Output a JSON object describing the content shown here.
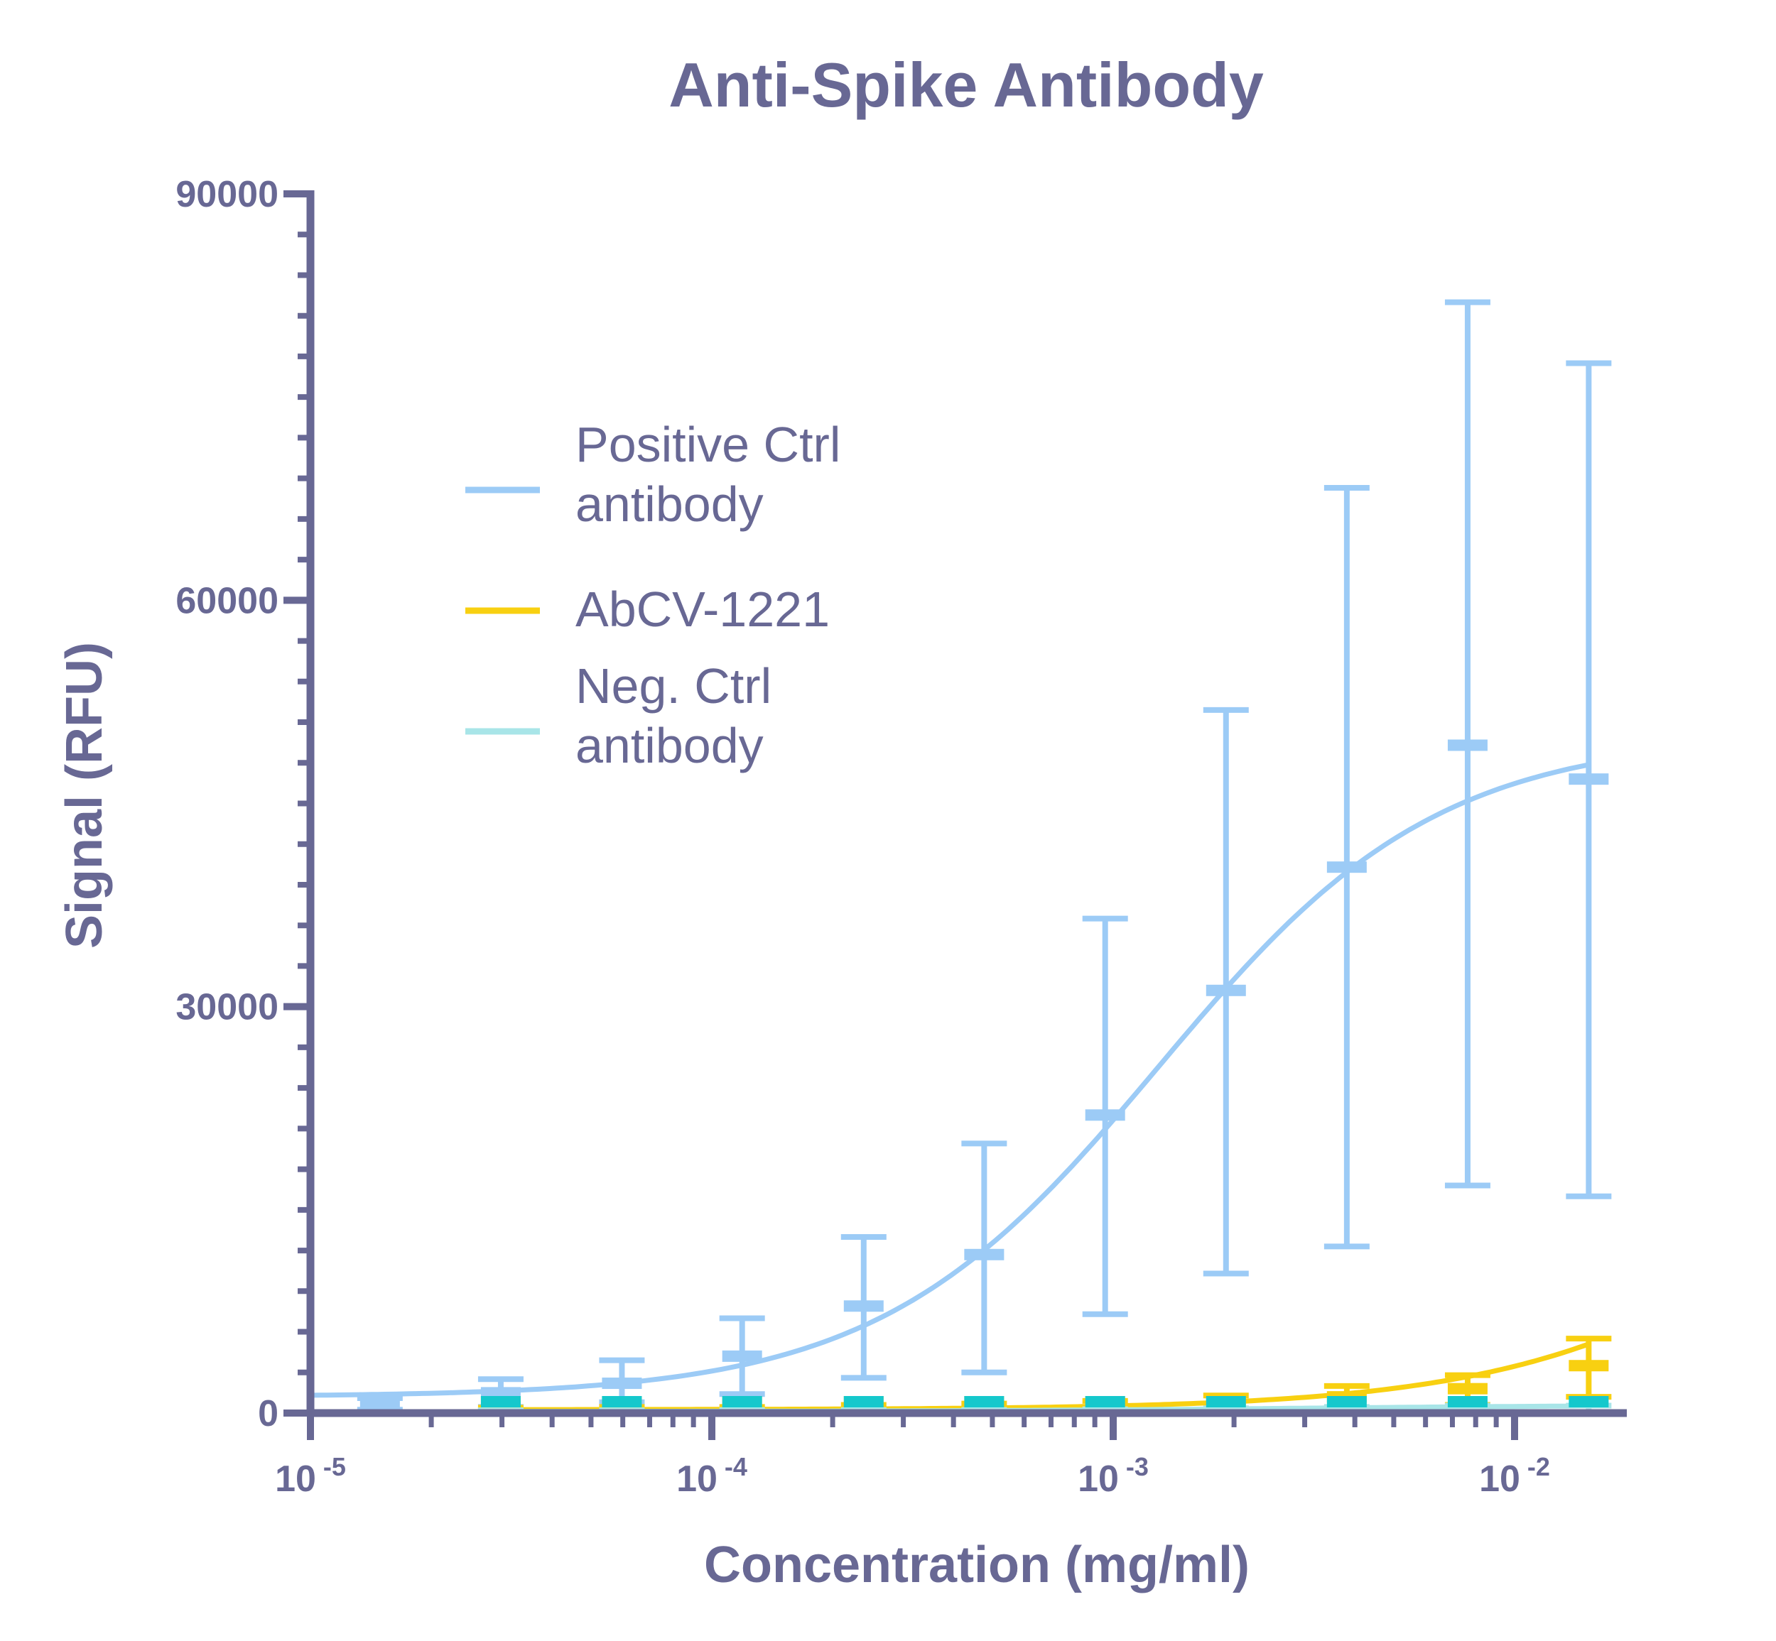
{
  "chart_data": {
    "type": "scatter",
    "title": "Anti-Spike Antibody",
    "xlabel": "Concentration (mg/ml)",
    "ylabel": "Signal (RFU)",
    "x_scale": "log",
    "xlim": [
      1e-05,
      0.02
    ],
    "ylim": [
      0,
      90000
    ],
    "x_ticks": [
      {
        "value": 1e-05,
        "base": "10",
        "exp": "-5"
      },
      {
        "value": 0.0001,
        "base": "10",
        "exp": "-4"
      },
      {
        "value": 0.001,
        "base": "10",
        "exp": "-3"
      },
      {
        "value": 0.01,
        "base": "10",
        "exp": "-2"
      }
    ],
    "y_ticks": [
      {
        "value": 0,
        "label": "0"
      },
      {
        "value": 30000,
        "label": "30000"
      },
      {
        "value": 60000,
        "label": "60000"
      },
      {
        "value": 90000,
        "label": "90000"
      }
    ],
    "y_minor_step": 3000,
    "grid": false,
    "legend_position": "upper-left",
    "colors": {
      "axis": "#686894",
      "text": "#686894"
    },
    "series": [
      {
        "name": "Positive Ctrl\nantibody",
        "color": "#9ccbf6",
        "points": [
          {
            "x": 1.49e-05,
            "y": 700,
            "low": 250,
            "high": 1100
          },
          {
            "x": 2.98e-05,
            "y": 1500,
            "low": 450,
            "high": 2500
          },
          {
            "x": 5.97e-05,
            "y": 2200,
            "low": 800,
            "high": 3900
          },
          {
            "x": 0.000119,
            "y": 4200,
            "low": 1400,
            "high": 7000
          },
          {
            "x": 0.000239,
            "y": 7900,
            "low": 2600,
            "high": 13000
          },
          {
            "x": 0.000477,
            "y": 11700,
            "low": 3000,
            "high": 19900
          },
          {
            "x": 0.000955,
            "y": 22000,
            "low": 7300,
            "high": 36500
          },
          {
            "x": 0.00191,
            "y": 31200,
            "low": 10300,
            "high": 51900
          },
          {
            "x": 0.00382,
            "y": 40300,
            "low": 12300,
            "high": 68300
          },
          {
            "x": 0.00764,
            "y": 49300,
            "low": 16800,
            "high": 82000
          },
          {
            "x": 0.0153,
            "y": 46800,
            "low": 16000,
            "high": 77500
          }
        ],
        "fit": {
          "bottom": 1200,
          "top": 50000,
          "ec50": 0.0013,
          "hill": 1.25
        }
      },
      {
        "name": "AbCV-1221",
        "color": "#f8d011",
        "points": [
          {
            "x": 2.98e-05,
            "y": 150,
            "low": 0,
            "high": 400
          },
          {
            "x": 5.97e-05,
            "y": 200,
            "low": 0,
            "high": 450
          },
          {
            "x": 0.000119,
            "y": 250,
            "low": 0,
            "high": 450
          },
          {
            "x": 0.000239,
            "y": 300,
            "low": 100,
            "high": 600
          },
          {
            "x": 0.000477,
            "y": 350,
            "low": 150,
            "high": 700
          },
          {
            "x": 0.000955,
            "y": 500,
            "low": 150,
            "high": 900
          },
          {
            "x": 0.00191,
            "y": 700,
            "low": 200,
            "high": 1300
          },
          {
            "x": 0.00382,
            "y": 1200,
            "low": 350,
            "high": 2000
          },
          {
            "x": 0.00764,
            "y": 1800,
            "low": 600,
            "high": 2800
          },
          {
            "x": 0.0153,
            "y": 3500,
            "low": 1200,
            "high": 5500
          }
        ],
        "fit": {
          "bottom": 250,
          "top": 35000,
          "ec50": 0.08,
          "hill": 1.1
        }
      },
      {
        "name": "Neg. Ctrl\nantibody",
        "color": "#a8e5e8",
        "marker_color": "#15c8cc",
        "points": [
          {
            "x": 2.98e-05,
            "y": 100,
            "low": 0,
            "high": 200
          },
          {
            "x": 5.97e-05,
            "y": 100,
            "low": 0,
            "high": 200
          },
          {
            "x": 0.000119,
            "y": 120,
            "low": 0,
            "high": 220
          },
          {
            "x": 0.000239,
            "y": 120,
            "low": 0,
            "high": 220
          },
          {
            "x": 0.000477,
            "y": 130,
            "low": 0,
            "high": 230
          },
          {
            "x": 0.000955,
            "y": 150,
            "low": 0,
            "high": 280
          },
          {
            "x": 0.00191,
            "y": 200,
            "low": 0,
            "high": 350
          },
          {
            "x": 0.00382,
            "y": 250,
            "low": 50,
            "high": 450
          },
          {
            "x": 0.00764,
            "y": 300,
            "low": 50,
            "high": 550
          },
          {
            "x": 0.0153,
            "y": 300,
            "low": 50,
            "high": 550
          }
        ],
        "fit": {
          "bottom": 120,
          "top": 600,
          "ec50": 0.003,
          "hill": 1.0
        }
      }
    ]
  }
}
